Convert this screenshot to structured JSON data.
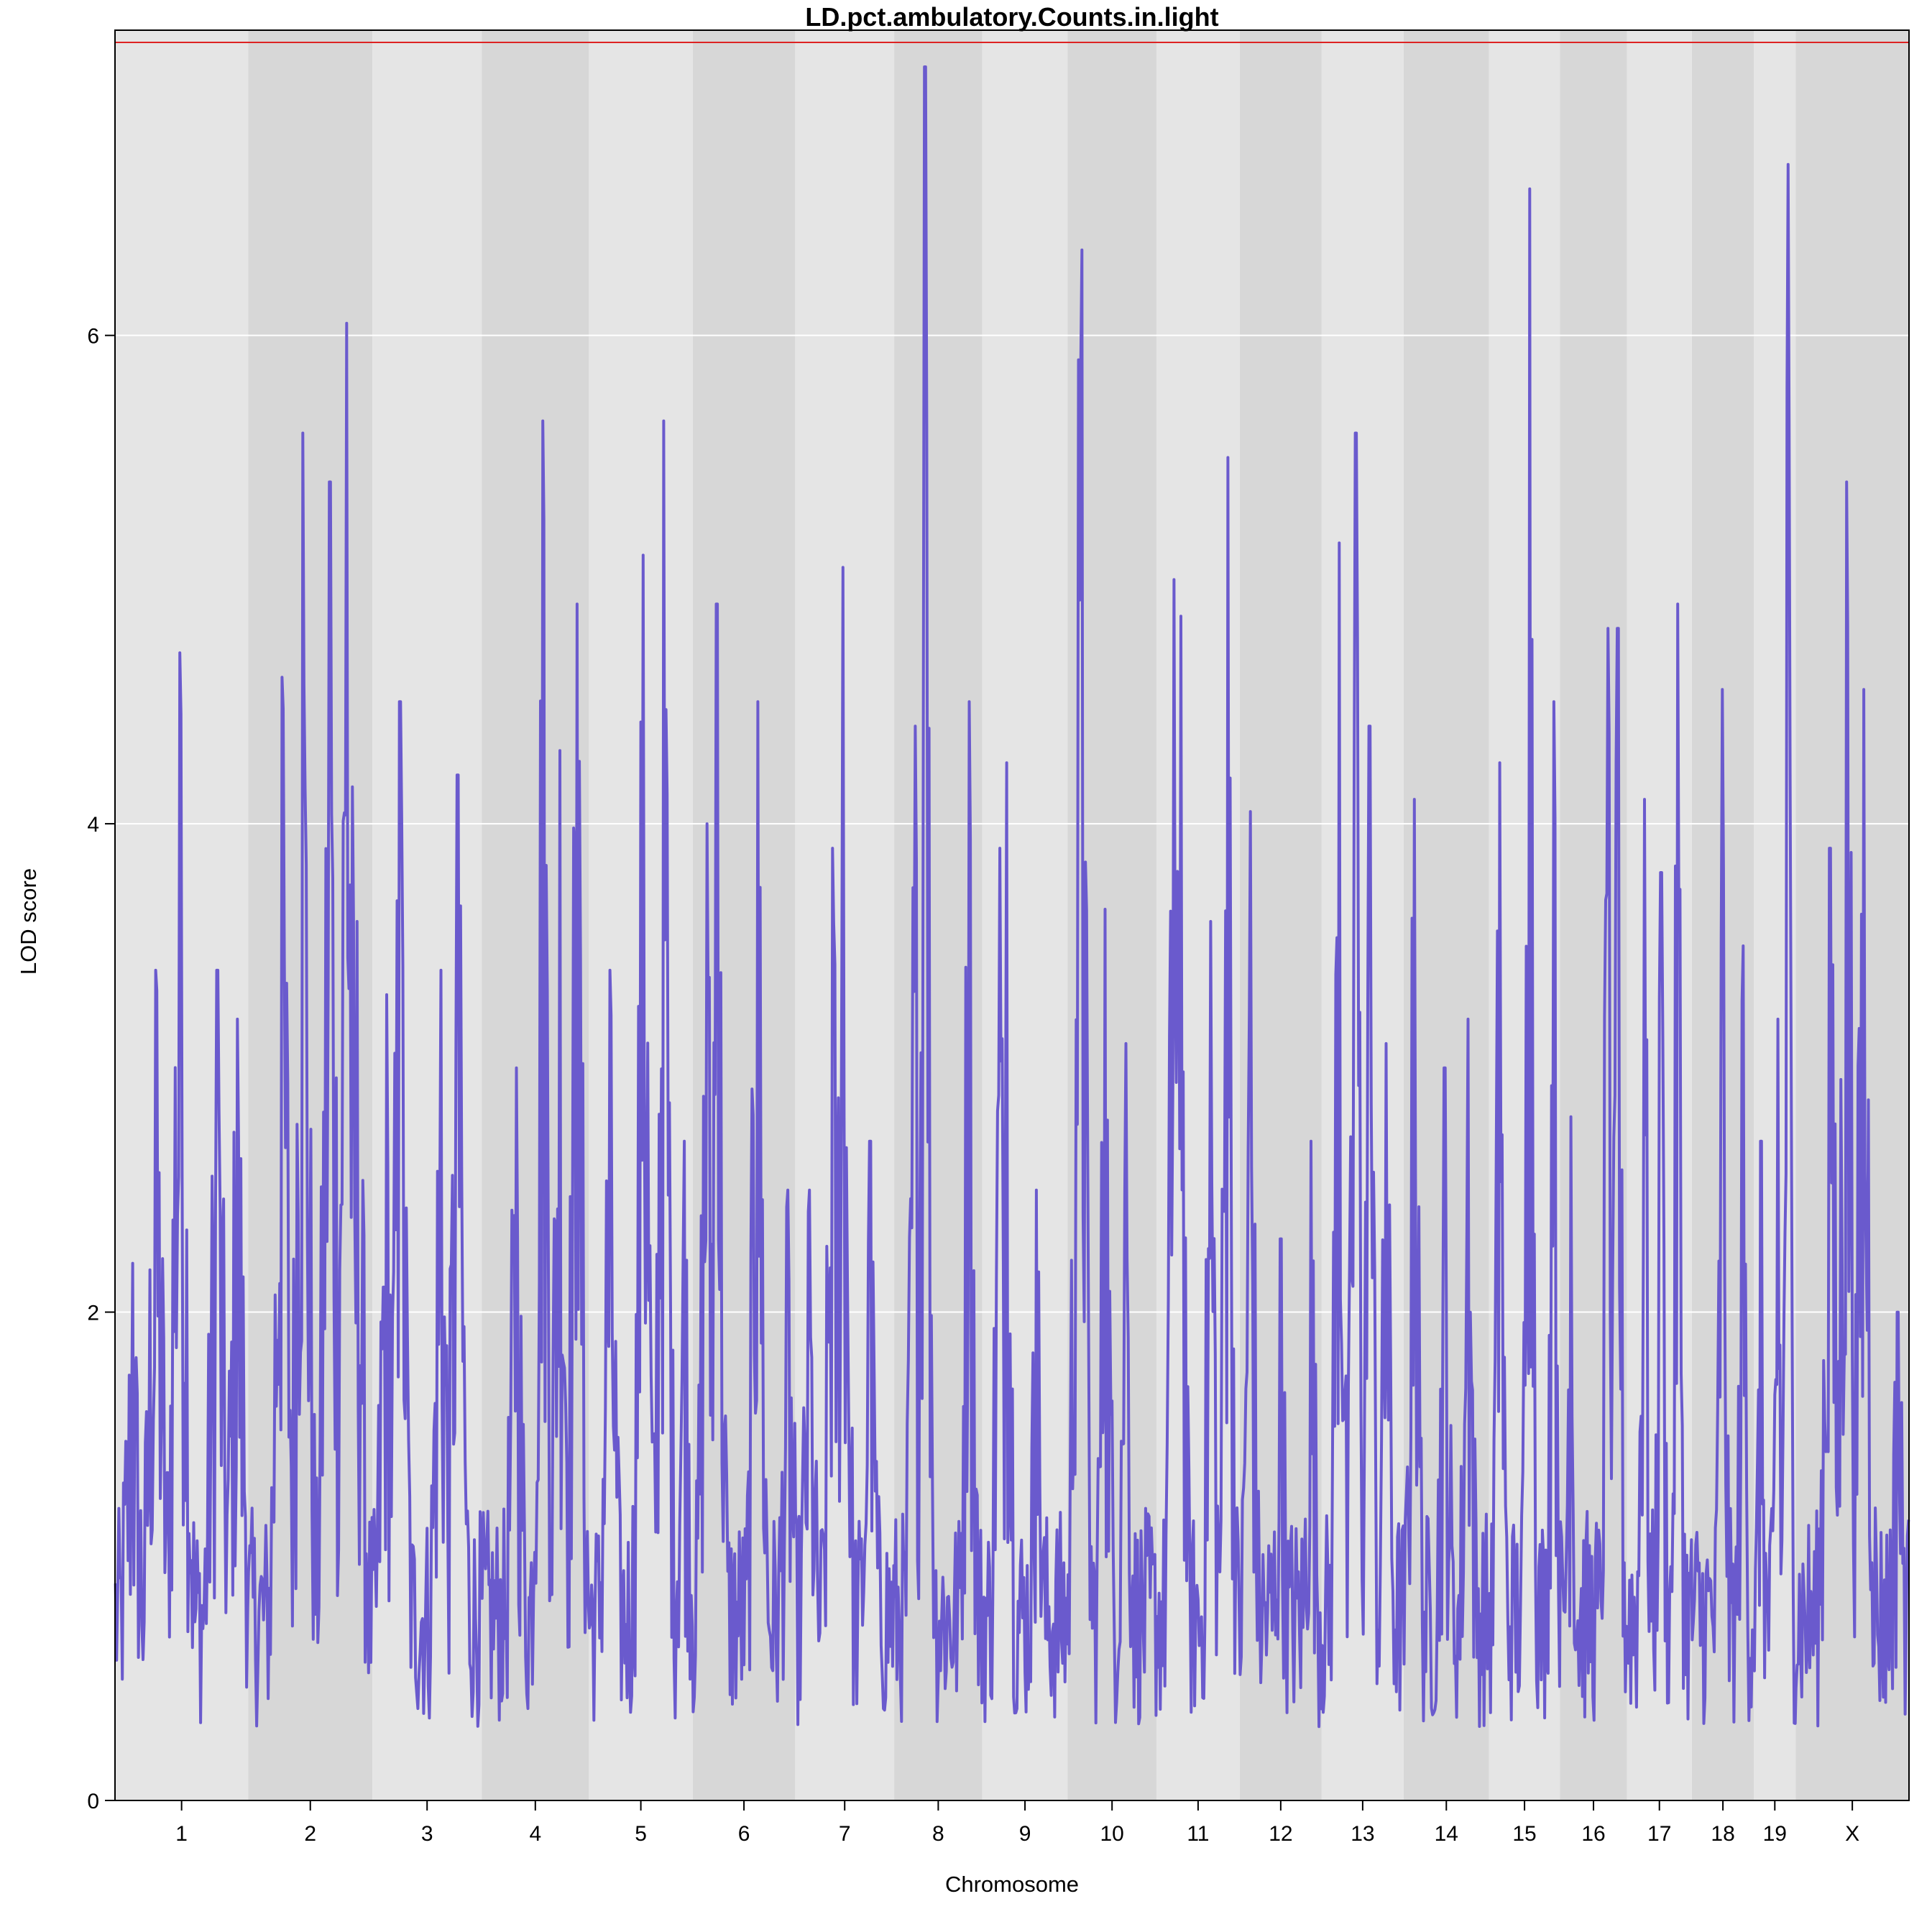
{
  "chart_data": {
    "type": "line",
    "title": "LD.pct.ambulatory.Counts.in.light",
    "xlabel": "Chromosome",
    "ylabel": "LOD score",
    "ylim": [
      0,
      7.25
    ],
    "yticks": [
      0,
      2,
      4,
      6
    ],
    "grid": "horizontal",
    "threshold": 7.2,
    "colors": {
      "line": "#6a5acd",
      "threshold": "#dd2222",
      "band_light": "#e5e5e5",
      "band_dark": "#d7d7d7",
      "grid": "#ffffff"
    },
    "chromosomes": [
      {
        "label": "1",
        "length": 195,
        "peaks": [
          [
            25,
            2.2
          ],
          [
            60,
            3.4
          ],
          [
            95,
            4.7
          ],
          [
            150,
            3.4
          ],
          [
            180,
            3.2
          ]
        ]
      },
      {
        "label": "2",
        "length": 182,
        "peaks": [
          [
            50,
            4.6
          ],
          [
            80,
            5.6
          ],
          [
            120,
            5.4
          ],
          [
            145,
            6.05
          ],
          [
            160,
            3.6
          ]
        ]
      },
      {
        "label": "3",
        "length": 160,
        "peaks": [
          [
            20,
            3.3
          ],
          [
            40,
            4.5
          ],
          [
            100,
            3.4
          ],
          [
            125,
            4.2
          ]
        ]
      },
      {
        "label": "4",
        "length": 157,
        "peaks": [
          [
            50,
            3.0
          ],
          [
            90,
            5.65
          ],
          [
            115,
            4.3
          ],
          [
            140,
            4.9
          ]
        ]
      },
      {
        "label": "5",
        "length": 152,
        "peaks": [
          [
            30,
            3.4
          ],
          [
            80,
            5.1
          ],
          [
            110,
            5.65
          ],
          [
            140,
            2.7
          ]
        ]
      },
      {
        "label": "6",
        "length": 150,
        "peaks": [
          [
            20,
            4.0
          ],
          [
            35,
            4.9
          ],
          [
            95,
            4.5
          ],
          [
            140,
            2.5
          ]
        ]
      },
      {
        "label": "7",
        "length": 145,
        "peaks": [
          [
            20,
            2.5
          ],
          [
            55,
            3.9
          ],
          [
            70,
            5.05
          ],
          [
            110,
            2.7
          ]
        ]
      },
      {
        "label": "8",
        "length": 129,
        "peaks": [
          [
            30,
            4.4
          ],
          [
            45,
            7.1
          ],
          [
            110,
            4.5
          ]
        ]
      },
      {
        "label": "9",
        "length": 125,
        "peaks": [
          [
            25,
            3.9
          ],
          [
            35,
            4.25
          ],
          [
            80,
            2.5
          ]
        ]
      },
      {
        "label": "10",
        "length": 130,
        "peaks": [
          [
            15,
            5.9
          ],
          [
            20,
            6.35
          ],
          [
            55,
            3.65
          ],
          [
            85,
            3.1
          ]
        ]
      },
      {
        "label": "11",
        "length": 122,
        "peaks": [
          [
            25,
            5.0
          ],
          [
            35,
            4.85
          ],
          [
            80,
            3.6
          ],
          [
            105,
            5.5
          ]
        ]
      },
      {
        "label": "12",
        "length": 120,
        "peaks": [
          [
            15,
            4.05
          ],
          [
            60,
            2.3
          ],
          [
            105,
            2.7
          ]
        ]
      },
      {
        "label": "13",
        "length": 120,
        "peaks": [
          [
            25,
            5.15
          ],
          [
            50,
            5.6
          ],
          [
            70,
            4.4
          ],
          [
            95,
            3.1
          ]
        ]
      },
      {
        "label": "14",
        "length": 125,
        "peaks": [
          [
            15,
            4.1
          ],
          [
            60,
            3.0
          ],
          [
            95,
            3.2
          ]
        ]
      },
      {
        "label": "15",
        "length": 104,
        "peaks": [
          [
            15,
            4.25
          ],
          [
            60,
            6.6
          ],
          [
            95,
            4.5
          ]
        ]
      },
      {
        "label": "16",
        "length": 98,
        "peaks": [
          [
            15,
            2.8
          ],
          [
            70,
            4.8
          ],
          [
            85,
            4.8
          ]
        ]
      },
      {
        "label": "17",
        "length": 95,
        "peaks": [
          [
            25,
            4.1
          ],
          [
            50,
            3.8
          ],
          [
            75,
            4.9
          ]
        ]
      },
      {
        "label": "18",
        "length": 91,
        "peaks": [
          [
            45,
            4.55
          ],
          [
            75,
            3.5
          ]
        ]
      },
      {
        "label": "19",
        "length": 61,
        "peaks": [
          [
            10,
            2.7
          ],
          [
            35,
            3.2
          ],
          [
            50,
            6.7
          ]
        ]
      },
      {
        "label": "X",
        "length": 166,
        "peaks": [
          [
            50,
            3.9
          ],
          [
            75,
            5.4
          ],
          [
            100,
            4.55
          ],
          [
            150,
            2.0
          ]
        ]
      }
    ]
  }
}
